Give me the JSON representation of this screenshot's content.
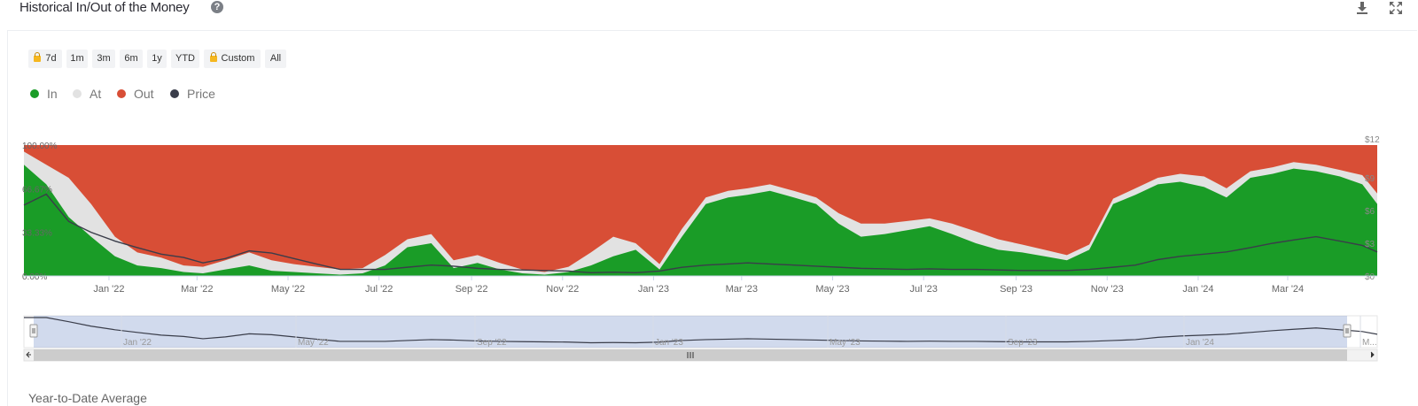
{
  "header": {
    "title": "Historical In/Out of the Money"
  },
  "range_buttons": [
    {
      "label": "7d",
      "locked": true
    },
    {
      "label": "1m",
      "locked": false
    },
    {
      "label": "3m",
      "locked": false
    },
    {
      "label": "6m",
      "locked": false
    },
    {
      "label": "1y",
      "locked": false
    },
    {
      "label": "YTD",
      "locked": false
    },
    {
      "label": "Custom",
      "locked": true
    },
    {
      "label": "All",
      "locked": false
    }
  ],
  "colors": {
    "in": "#1a9c27",
    "at": "#e2e2e2",
    "out": "#d84e36",
    "price": "#3a3d4a"
  },
  "chart_data": {
    "type": "area",
    "stacked_percent": true,
    "legend": [
      {
        "name": "In",
        "color": "#1a9c27"
      },
      {
        "name": "At",
        "color": "#e2e2e2"
      },
      {
        "name": "Out",
        "color": "#d84e36"
      },
      {
        "name": "Price",
        "color": "#3a3d4a"
      }
    ],
    "x_range": [
      "2021-11-05",
      "2024-04-30"
    ],
    "x_ticks": [
      {
        "label": "Jan '22",
        "date": "2022-01-01"
      },
      {
        "label": "Mar '22",
        "date": "2022-03-01"
      },
      {
        "label": "May '22",
        "date": "2022-05-01"
      },
      {
        "label": "Jul '22",
        "date": "2022-07-01"
      },
      {
        "label": "Sep '22",
        "date": "2022-09-01"
      },
      {
        "label": "Nov '22",
        "date": "2022-11-01"
      },
      {
        "label": "Jan '23",
        "date": "2023-01-01"
      },
      {
        "label": "Mar '23",
        "date": "2023-03-01"
      },
      {
        "label": "May '23",
        "date": "2023-05-01"
      },
      {
        "label": "Jul '23",
        "date": "2023-07-01"
      },
      {
        "label": "Sep '23",
        "date": "2023-09-01"
      },
      {
        "label": "Nov '23",
        "date": "2023-11-01"
      },
      {
        "label": "Jan '24",
        "date": "2024-01-01"
      },
      {
        "label": "Mar '24",
        "date": "2024-03-01"
      }
    ],
    "y_left": {
      "range": [
        0,
        100
      ],
      "ticks": [
        "0.00%",
        "33.33%",
        "66.67%",
        "100.00%"
      ]
    },
    "y_right": {
      "range": [
        0,
        12
      ],
      "ticks": [
        "$12",
        "$9",
        "$6",
        "$3",
        "$0"
      ]
    },
    "dates": [
      "2021-11-05",
      "2021-11-20",
      "2021-12-05",
      "2021-12-20",
      "2022-01-05",
      "2022-01-20",
      "2022-02-05",
      "2022-02-20",
      "2022-03-05",
      "2022-03-20",
      "2022-04-05",
      "2022-04-20",
      "2022-05-05",
      "2022-05-20",
      "2022-06-05",
      "2022-06-20",
      "2022-07-05",
      "2022-07-20",
      "2022-08-05",
      "2022-08-20",
      "2022-09-05",
      "2022-09-20",
      "2022-10-05",
      "2022-10-20",
      "2022-11-05",
      "2022-11-20",
      "2022-12-05",
      "2022-12-20",
      "2023-01-05",
      "2023-01-20",
      "2023-02-05",
      "2023-02-20",
      "2023-03-05",
      "2023-03-20",
      "2023-04-05",
      "2023-04-20",
      "2023-05-05",
      "2023-05-20",
      "2023-06-05",
      "2023-06-20",
      "2023-07-05",
      "2023-07-20",
      "2023-08-05",
      "2023-08-20",
      "2023-09-05",
      "2023-09-20",
      "2023-10-05",
      "2023-10-20",
      "2023-11-05",
      "2023-11-20",
      "2023-12-05",
      "2023-12-20",
      "2024-01-05",
      "2024-01-20",
      "2024-02-05",
      "2024-02-20",
      "2024-03-05",
      "2024-03-20",
      "2024-04-05",
      "2024-04-20",
      "2024-04-30"
    ],
    "series": [
      {
        "name": "In",
        "values": [
          85,
          70,
          45,
          30,
          15,
          8,
          6,
          3,
          2,
          5,
          8,
          4,
          3,
          2,
          1,
          2,
          8,
          22,
          25,
          6,
          10,
          5,
          2,
          1,
          3,
          8,
          15,
          20,
          5,
          30,
          55,
          60,
          62,
          65,
          60,
          55,
          40,
          30,
          32,
          35,
          38,
          32,
          25,
          20,
          18,
          15,
          12,
          20,
          55,
          62,
          70,
          72,
          68,
          60,
          75,
          78,
          82,
          80,
          76,
          70,
          55
        ]
      },
      {
        "name": "At",
        "values": [
          10,
          15,
          30,
          25,
          15,
          10,
          8,
          5,
          5,
          7,
          10,
          8,
          6,
          5,
          4,
          4,
          8,
          6,
          7,
          6,
          6,
          5,
          3,
          2,
          4,
          10,
          15,
          5,
          4,
          6,
          5,
          5,
          5,
          5,
          5,
          5,
          8,
          10,
          8,
          7,
          6,
          8,
          9,
          8,
          6,
          5,
          4,
          4,
          4,
          5,
          5,
          6,
          8,
          7,
          5,
          5,
          5,
          5,
          5,
          7,
          8
        ]
      },
      {
        "name": "Out",
        "values": [
          5,
          15,
          25,
          45,
          70,
          82,
          86,
          92,
          93,
          88,
          82,
          88,
          91,
          93,
          95,
          94,
          84,
          72,
          68,
          88,
          84,
          90,
          95,
          97,
          93,
          82,
          70,
          75,
          91,
          64,
          40,
          35,
          33,
          30,
          35,
          40,
          52,
          60,
          60,
          58,
          56,
          60,
          66,
          72,
          76,
          80,
          84,
          76,
          41,
          33,
          25,
          22,
          24,
          33,
          20,
          17,
          13,
          15,
          19,
          23,
          37
        ]
      },
      {
        "name": "Price",
        "values": [
          6.5,
          7.5,
          5.0,
          4.0,
          3.2,
          2.6,
          2.0,
          1.7,
          1.2,
          1.6,
          2.3,
          2.1,
          1.6,
          1.1,
          0.6,
          0.6,
          0.6,
          0.8,
          1.0,
          0.9,
          0.7,
          0.6,
          0.55,
          0.5,
          0.45,
          0.3,
          0.35,
          0.3,
          0.45,
          0.8,
          1.0,
          1.1,
          1.2,
          1.1,
          1.0,
          0.9,
          0.8,
          0.7,
          0.65,
          0.6,
          0.65,
          0.6,
          0.6,
          0.55,
          0.5,
          0.5,
          0.5,
          0.6,
          0.8,
          1.0,
          1.5,
          1.8,
          2.0,
          2.2,
          2.6,
          3.0,
          3.3,
          3.6,
          3.2,
          2.8,
          2.2
        ]
      }
    ],
    "navigator_ticks": [
      "Jan '22",
      "May '22",
      "Sep '22",
      "Jan '23",
      "May '23",
      "Sep '23",
      "Jan '24",
      "M..."
    ]
  },
  "footer": {
    "text": "Year-to-Date Average"
  }
}
